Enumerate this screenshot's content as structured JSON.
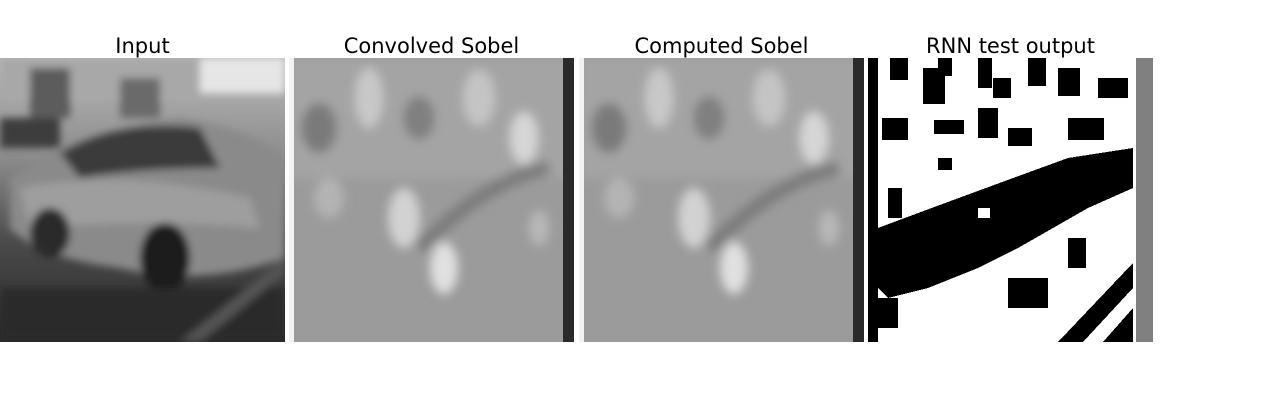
{
  "figure": {
    "panels": [
      {
        "title": "Input"
      },
      {
        "title": "Convolved Sobel"
      },
      {
        "title": "Computed Sobel"
      },
      {
        "title": "RNN test output"
      }
    ]
  }
}
